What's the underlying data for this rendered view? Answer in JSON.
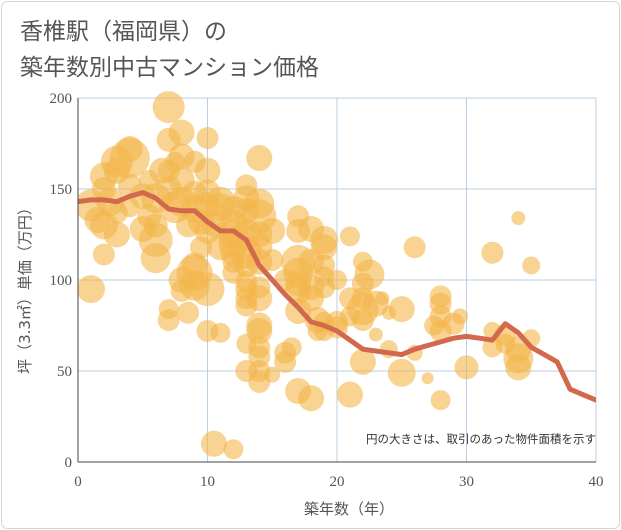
{
  "title_line1": "香椎駅（福岡県）の",
  "title_line2": "築年数別中古マンション価格",
  "note": "円の大きさは、取引のあった物件面積を示す",
  "colors": {
    "bubble": "#f3b54a",
    "line": "#d2694f",
    "grid": "#b9cfe2",
    "frame": "#d7d7d7",
    "text": "#555555"
  },
  "chart_data": {
    "type": "scatter",
    "xlabel": "築年数（年）",
    "ylabel": "坪（3.3㎡）単価（万円）",
    "xlim": [
      0,
      40
    ],
    "ylim": [
      0,
      200
    ],
    "x_ticks": [
      "0",
      "10",
      "20",
      "30",
      "40"
    ],
    "y_ticks": [
      "0",
      "50",
      "100",
      "150",
      "200"
    ],
    "grid": true,
    "series": [
      {
        "kind": "bubble",
        "points": [
          [
            1,
            141,
            1.6
          ],
          [
            1,
            95,
            1.4
          ],
          [
            1.5,
            133,
            1.3
          ],
          [
            2,
            150,
            1.2
          ],
          [
            2,
            157,
            1.4
          ],
          [
            2,
            130,
            1.4
          ],
          [
            2,
            114,
            1.1
          ],
          [
            2.5,
            143,
            1.4
          ],
          [
            3,
            160,
            1.3
          ],
          [
            3,
            165,
            1.6
          ],
          [
            3,
            137,
            1.1
          ],
          [
            3,
            125,
            1.3
          ],
          [
            4,
            167,
            2.0
          ],
          [
            4,
            172,
            1.3
          ],
          [
            4,
            152,
            1.2
          ],
          [
            4,
            140,
            1.0
          ],
          [
            5,
            146,
            1.3
          ],
          [
            5,
            128,
            1.3
          ],
          [
            5.5,
            155,
            1.0
          ],
          [
            5.5,
            135,
            1.2
          ],
          [
            6,
            130,
            1.2
          ],
          [
            6,
            122,
            1.7
          ],
          [
            6,
            112,
            1.5
          ],
          [
            6,
            145,
            1.5
          ],
          [
            6.5,
            160,
            1.3
          ],
          [
            7,
            195,
            1.6
          ],
          [
            7,
            177,
            1.2
          ],
          [
            7,
            160,
            1.1
          ],
          [
            7,
            150,
            1.3
          ],
          [
            7,
            84,
            1.0
          ],
          [
            7,
            78,
            1.1
          ],
          [
            7.5,
            140,
            1.6
          ],
          [
            7.5,
            165,
            1.0
          ],
          [
            8,
            181,
            1.3
          ],
          [
            8,
            168,
            1.3
          ],
          [
            8,
            155,
            1.3
          ],
          [
            8,
            143,
            1.5
          ],
          [
            8,
            100,
            1.3
          ],
          [
            8,
            94,
            1.1
          ],
          [
            8.5,
            130,
            1.2
          ],
          [
            8.5,
            82,
            1.1
          ],
          [
            9,
            165,
            1.1
          ],
          [
            9,
            148,
            1.2
          ],
          [
            9,
            139,
            1.4
          ],
          [
            9,
            108,
            1.3
          ],
          [
            9,
            104,
            1.8
          ],
          [
            9,
            97,
            1.5
          ],
          [
            9.5,
            132,
            1.3
          ],
          [
            9.5,
            118,
            1.1
          ],
          [
            10,
            178,
            1.1
          ],
          [
            10,
            160,
            1.3
          ],
          [
            10,
            148,
            1.3
          ],
          [
            10,
            141,
            1.3
          ],
          [
            10,
            127,
            1.3
          ],
          [
            10,
            95,
            1.7
          ],
          [
            10,
            72,
            1.1
          ],
          [
            10.5,
            131,
            1.3
          ],
          [
            10.5,
            10,
            1.3
          ],
          [
            11,
            143,
            1.5
          ],
          [
            11,
            140,
            1.4
          ],
          [
            11,
            118,
            1.3
          ],
          [
            11,
            71,
            1.0
          ],
          [
            12,
            139,
            1.3
          ],
          [
            12,
            130,
            1.5
          ],
          [
            12,
            125,
            1.5
          ],
          [
            12,
            120,
            1.5
          ],
          [
            12,
            115,
            1.3
          ],
          [
            12,
            110,
            1.1
          ],
          [
            12,
            104,
            1.1
          ],
          [
            12,
            7,
            1.0
          ],
          [
            13,
            152,
            1.1
          ],
          [
            13,
            145,
            1.3
          ],
          [
            13,
            138,
            1.3
          ],
          [
            13,
            125,
            1.5
          ],
          [
            13,
            115,
            1.6
          ],
          [
            13,
            108,
            1.2
          ],
          [
            13,
            99,
            1.1
          ],
          [
            13,
            95,
            1.1
          ],
          [
            13,
            90,
            1.1
          ],
          [
            13,
            86,
            1.1
          ],
          [
            13,
            65,
            1.0
          ],
          [
            13,
            50,
            1.1
          ],
          [
            14,
            167,
            1.3
          ],
          [
            14,
            142,
            1.5
          ],
          [
            14,
            135,
            1.7
          ],
          [
            14,
            125,
            1.3
          ],
          [
            14,
            118,
            1.3
          ],
          [
            14,
            110,
            1.3
          ],
          [
            14,
            96,
            1.1
          ],
          [
            14,
            90,
            1.3
          ],
          [
            14,
            75,
            1.3
          ],
          [
            14,
            72,
            1.3
          ],
          [
            14,
            63,
            1.1
          ],
          [
            14,
            58,
            1.1
          ],
          [
            14,
            50,
            1.1
          ],
          [
            14,
            44,
            1.1
          ],
          [
            15,
            127,
            1.3
          ],
          [
            15,
            111,
            1.1
          ],
          [
            15,
            48,
            0.8
          ],
          [
            16,
            100,
            1.1
          ],
          [
            16,
            60,
            1.1
          ],
          [
            16,
            55,
            1.1
          ],
          [
            16.5,
            63,
            1.0
          ],
          [
            17,
            135,
            1.1
          ],
          [
            17,
            127,
            1.2
          ],
          [
            17,
            110,
            1.7
          ],
          [
            17,
            104,
            1.5
          ],
          [
            17,
            98,
            1.3
          ],
          [
            17,
            94,
            1.3
          ],
          [
            17,
            83,
            1.3
          ],
          [
            17,
            39,
            1.3
          ],
          [
            18,
            128,
            1.3
          ],
          [
            18,
            110,
            1.3
          ],
          [
            18,
            96,
            1.3
          ],
          [
            18,
            90,
            1.3
          ],
          [
            18,
            35,
            1.3
          ],
          [
            18.5,
            78,
            1.3
          ],
          [
            18.5,
            72,
            1.0
          ],
          [
            19,
            122,
            1.4
          ],
          [
            19,
            118,
            1.3
          ],
          [
            19,
            108,
            1.1
          ],
          [
            19,
            102,
            1.0
          ],
          [
            19,
            96,
            1.1
          ],
          [
            19,
            77,
            1.0
          ],
          [
            19,
            72,
            1.0
          ],
          [
            20,
            100,
            1.0
          ],
          [
            20,
            77,
            1.1
          ],
          [
            20,
            74,
            1.1
          ],
          [
            21,
            124,
            1.0
          ],
          [
            21,
            90,
            1.1
          ],
          [
            21,
            80,
            1.0
          ],
          [
            21,
            37,
            1.3
          ],
          [
            22,
            110,
            1.0
          ],
          [
            22,
            98,
            1.1
          ],
          [
            22,
            90,
            1.1
          ],
          [
            22,
            84,
            1.6
          ],
          [
            22,
            78,
            1.1
          ],
          [
            22,
            55,
            1.3
          ],
          [
            22.5,
            103,
            1.5
          ],
          [
            23,
            87,
            1.3
          ],
          [
            23,
            70,
            0.7
          ],
          [
            23.5,
            90,
            0.7
          ],
          [
            24,
            82,
            0.7
          ],
          [
            24,
            62,
            0.9
          ],
          [
            25,
            84,
            1.3
          ],
          [
            25,
            49,
            1.4
          ],
          [
            26,
            118,
            1.1
          ],
          [
            26,
            60,
            0.8
          ],
          [
            27,
            46,
            0.6
          ],
          [
            27.5,
            75,
            1.0
          ],
          [
            28,
            91,
            1.1
          ],
          [
            28,
            87,
            1.1
          ],
          [
            28,
            80,
            1.1
          ],
          [
            28,
            72,
            1.1
          ],
          [
            28,
            34,
            1.0
          ],
          [
            29,
            76,
            1.1
          ],
          [
            29.5,
            80,
            0.8
          ],
          [
            30,
            52,
            1.2
          ],
          [
            32,
            115,
            1.1
          ],
          [
            32,
            72,
            0.9
          ],
          [
            32,
            63,
            1.0
          ],
          [
            33,
            70,
            1.1
          ],
          [
            33,
            65,
            1.0
          ],
          [
            34,
            134,
            0.7
          ],
          [
            34,
            62,
            1.3
          ],
          [
            34,
            57,
            1.5
          ],
          [
            34,
            52,
            1.3
          ],
          [
            35,
            108,
            0.9
          ],
          [
            35,
            68,
            0.9
          ]
        ]
      },
      {
        "kind": "line",
        "x": [
          0,
          1,
          2,
          3,
          4,
          5,
          6,
          7,
          8,
          9,
          10,
          11,
          12,
          13,
          14,
          15,
          16,
          17,
          18,
          19,
          20,
          21,
          22,
          23,
          24,
          25,
          26,
          27,
          28,
          29,
          30,
          31,
          32,
          33,
          34,
          35,
          36,
          37,
          38,
          39,
          40
        ],
        "y": [
          143,
          144,
          144,
          143,
          146,
          148,
          145,
          139,
          138,
          138,
          132,
          127,
          127,
          122,
          108,
          100,
          92,
          85,
          77,
          75,
          72,
          67,
          62,
          61,
          60,
          59,
          62,
          64,
          66,
          68,
          69,
          68,
          67,
          76,
          71,
          63,
          59,
          55,
          40,
          37,
          34
        ]
      }
    ]
  }
}
